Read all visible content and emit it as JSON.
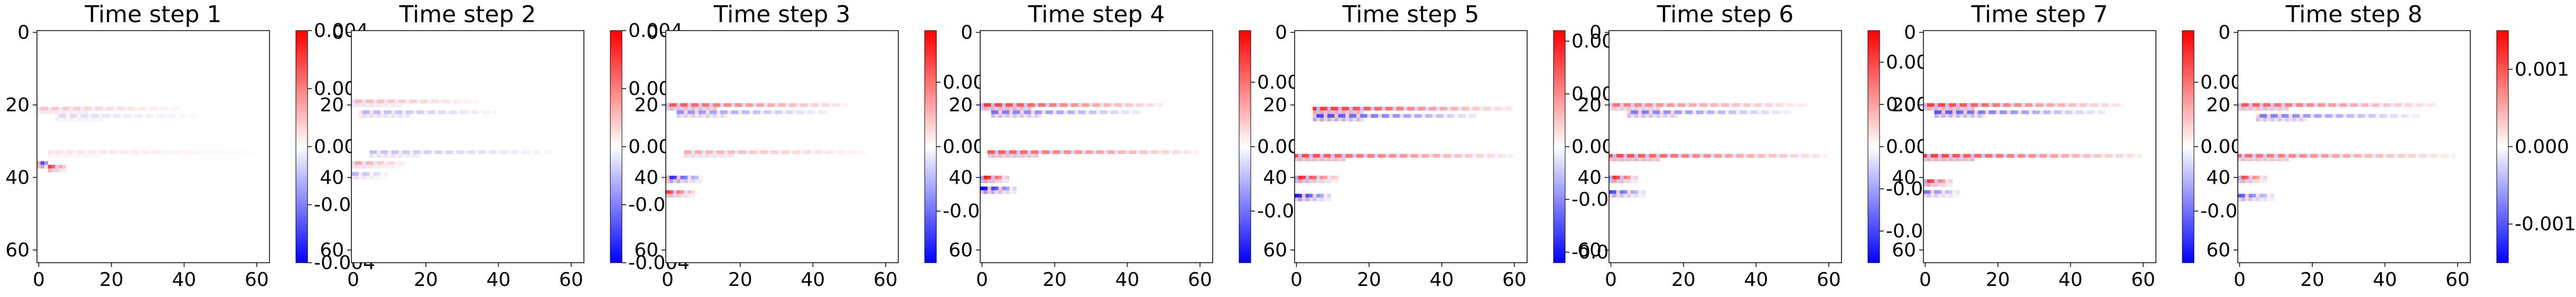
{
  "chart_data": [
    {
      "type": "heatmap",
      "title": "Time step 1",
      "x_ticks": [
        0,
        20,
        40,
        60
      ],
      "y_ticks": [
        0,
        20,
        40,
        60
      ],
      "grid_size": [
        64,
        64
      ],
      "colormap": "bwr",
      "colorbar": {
        "range": [
          -0.004,
          0.004
        ],
        "ticks": [
          "-0.004",
          "-0.002",
          "0.000",
          "0.002",
          "0.004"
        ]
      },
      "features": [
        {
          "row": 21,
          "col_start": 0,
          "col_end": 40,
          "value": 0.001
        },
        {
          "row": 23,
          "col_start": 5,
          "col_end": 45,
          "value": -0.0006
        },
        {
          "row": 33,
          "col_start": 3,
          "col_end": 60,
          "value": 0.0005
        },
        {
          "row": 36,
          "col_start": 0,
          "col_end": 3,
          "value": -0.004
        },
        {
          "row": 37,
          "col_start": 3,
          "col_end": 8,
          "value": 0.003
        }
      ]
    },
    {
      "type": "heatmap",
      "title": "Time step 2",
      "x_ticks": [
        0,
        20,
        40,
        60
      ],
      "y_ticks": [
        0,
        20,
        40,
        60
      ],
      "grid_size": [
        64,
        64
      ],
      "colormap": "bwr",
      "colorbar": {
        "range": [
          -0.004,
          0.004
        ],
        "ticks": [
          "-0.004",
          "-0.002",
          "0.000",
          "0.002",
          "0.004"
        ]
      },
      "features": [
        {
          "row": 19,
          "col_start": 0,
          "col_end": 35,
          "value": 0.0012
        },
        {
          "row": 22,
          "col_start": 2,
          "col_end": 40,
          "value": -0.0012
        },
        {
          "row": 33,
          "col_start": 5,
          "col_end": 55,
          "value": -0.001
        },
        {
          "row": 36,
          "col_start": 0,
          "col_end": 15,
          "value": 0.0015
        },
        {
          "row": 39,
          "col_start": 0,
          "col_end": 10,
          "value": -0.0012
        }
      ]
    },
    {
      "type": "heatmap",
      "title": "Time step 3",
      "x_ticks": [
        0,
        20,
        40,
        60
      ],
      "y_ticks": [
        0,
        20,
        40,
        60
      ],
      "grid_size": [
        64,
        64
      ],
      "colormap": "bwr",
      "colorbar": {
        "range": [
          -0.0009,
          0.0009
        ],
        "ticks": [
          "-0.0005",
          "0.0000",
          "0.0005"
        ]
      },
      "features": [
        {
          "row": 20,
          "col_start": 0,
          "col_end": 50,
          "value": 0.0006
        },
        {
          "row": 22,
          "col_start": 3,
          "col_end": 45,
          "value": -0.0004
        },
        {
          "row": 33,
          "col_start": 5,
          "col_end": 55,
          "value": 0.0003
        },
        {
          "row": 40,
          "col_start": 0,
          "col_end": 10,
          "value": -0.0008
        },
        {
          "row": 44,
          "col_start": 0,
          "col_end": 8,
          "value": 0.0007
        }
      ]
    },
    {
      "type": "heatmap",
      "title": "Time step 4",
      "x_ticks": [
        0,
        20,
        40,
        60
      ],
      "y_ticks": [
        0,
        20,
        40,
        60
      ],
      "grid_size": [
        64,
        64
      ],
      "colormap": "bwr",
      "colorbar": {
        "range": [
          -0.0009,
          0.0009
        ],
        "ticks": [
          "-0.0005",
          "0.0000",
          "0.0005"
        ]
      },
      "features": [
        {
          "row": 20,
          "col_start": 0,
          "col_end": 50,
          "value": 0.0007
        },
        {
          "row": 22,
          "col_start": 3,
          "col_end": 45,
          "value": -0.0005
        },
        {
          "row": 33,
          "col_start": 2,
          "col_end": 60,
          "value": 0.0006
        },
        {
          "row": 40,
          "col_start": 0,
          "col_end": 8,
          "value": 0.0009
        },
        {
          "row": 43,
          "col_start": 0,
          "col_end": 10,
          "value": -0.0009
        }
      ]
    },
    {
      "type": "heatmap",
      "title": "Time step 5",
      "x_ticks": [
        0,
        20,
        40,
        60
      ],
      "y_ticks": [
        0,
        20,
        40,
        60
      ],
      "grid_size": [
        64,
        64
      ],
      "colormap": "bwr",
      "colorbar": {
        "range": [
          -0.0011,
          0.0011
        ],
        "ticks": [
          "-0.0010",
          "-0.0005",
          "0.0000",
          "0.0005",
          "0.0010"
        ]
      },
      "features": [
        {
          "row": 21,
          "col_start": 5,
          "col_end": 60,
          "value": 0.0009
        },
        {
          "row": 23,
          "col_start": 5,
          "col_end": 50,
          "value": -0.0008
        },
        {
          "row": 34,
          "col_start": 0,
          "col_end": 60,
          "value": 0.0008
        },
        {
          "row": 40,
          "col_start": 0,
          "col_end": 12,
          "value": 0.001
        },
        {
          "row": 45,
          "col_start": 0,
          "col_end": 10,
          "value": -0.001
        }
      ]
    },
    {
      "type": "heatmap",
      "title": "Time step 6",
      "x_ticks": [
        0,
        20,
        40,
        60
      ],
      "y_ticks": [
        0,
        20,
        40,
        60
      ],
      "grid_size": [
        64,
        64
      ],
      "colormap": "bwr",
      "colorbar": {
        "range": [
          -0.00055,
          0.00055
        ],
        "ticks": [
          "-0.0004",
          "-0.0002",
          "0.0000",
          "0.0002",
          "0.0004"
        ]
      },
      "features": [
        {
          "row": 20,
          "col_start": 0,
          "col_end": 55,
          "value": 0.0003
        },
        {
          "row": 22,
          "col_start": 5,
          "col_end": 50,
          "value": -0.0003
        },
        {
          "row": 34,
          "col_start": 0,
          "col_end": 60,
          "value": 0.0004
        },
        {
          "row": 40,
          "col_start": 0,
          "col_end": 8,
          "value": 0.0005
        },
        {
          "row": 44,
          "col_start": 0,
          "col_end": 10,
          "value": -0.0004
        }
      ]
    },
    {
      "type": "heatmap",
      "title": "Time step 7",
      "x_ticks": [
        0,
        20,
        40,
        60
      ],
      "y_ticks": [
        0,
        20,
        40,
        60
      ],
      "grid_size": [
        64,
        64
      ],
      "colormap": "bwr",
      "colorbar": {
        "range": [
          -0.0009,
          0.0009
        ],
        "ticks": [
          "-0.0005",
          "0.0000",
          "0.0005"
        ]
      },
      "features": [
        {
          "row": 20,
          "col_start": 0,
          "col_end": 55,
          "value": 0.0007
        },
        {
          "row": 22,
          "col_start": 3,
          "col_end": 50,
          "value": -0.0006
        },
        {
          "row": 34,
          "col_start": 0,
          "col_end": 60,
          "value": 0.0007
        },
        {
          "row": 41,
          "col_start": 0,
          "col_end": 8,
          "value": 0.0008
        },
        {
          "row": 44,
          "col_start": 0,
          "col_end": 10,
          "value": -0.0005
        }
      ]
    },
    {
      "type": "heatmap",
      "title": "Time step 8",
      "x_ticks": [
        0,
        20,
        40,
        60
      ],
      "y_ticks": [
        0,
        20,
        40,
        60
      ],
      "grid_size": [
        64,
        64
      ],
      "colormap": "bwr",
      "colorbar": {
        "range": [
          -0.0015,
          0.0015
        ],
        "ticks": [
          "-0.001",
          "0.000",
          "0.001"
        ]
      },
      "features": [
        {
          "row": 20,
          "col_start": 0,
          "col_end": 55,
          "value": 0.001
        },
        {
          "row": 23,
          "col_start": 5,
          "col_end": 50,
          "value": -0.0008
        },
        {
          "row": 34,
          "col_start": 0,
          "col_end": 60,
          "value": 0.0009
        },
        {
          "row": 40,
          "col_start": 0,
          "col_end": 8,
          "value": 0.0012
        },
        {
          "row": 45,
          "col_start": 0,
          "col_end": 10,
          "value": -0.001
        }
      ]
    }
  ],
  "colors": {
    "negative": "#0000ff",
    "zero": "#ffffff",
    "positive": "#ff0000"
  }
}
